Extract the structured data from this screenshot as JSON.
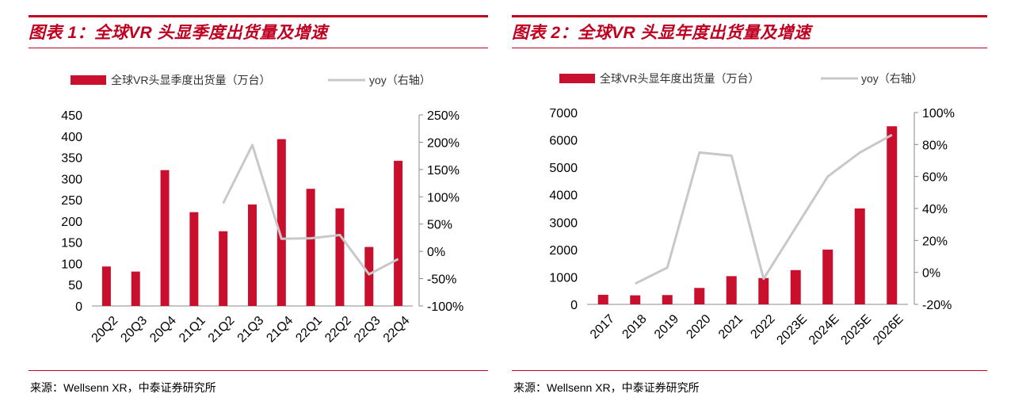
{
  "theme": {
    "accent": "#c00020",
    "bar_color": "#c8102e",
    "line_color": "#c8c8c8",
    "axis_color": "#888888"
  },
  "chart_data": [
    {
      "type": "bar+line",
      "title": "图表 1：全球VR 头显季度出货量及增速",
      "source": "来源：Wellsenn XR，中泰证券研究所",
      "categories": [
        "20Q2",
        "20Q3",
        "20Q4",
        "21Q1",
        "21Q2",
        "21Q3",
        "21Q4",
        "22Q1",
        "22Q2",
        "22Q3",
        "22Q4"
      ],
      "series": [
        {
          "name": "全球VR头显季度出货量（万台）",
          "type": "bar",
          "axis": "left",
          "values": [
            93,
            81,
            320,
            221,
            176,
            239,
            393,
            276,
            230,
            139,
            342
          ]
        },
        {
          "name": "yoy（右轴）",
          "type": "line",
          "axis": "right",
          "values": [
            null,
            null,
            null,
            null,
            0.88,
            1.95,
            0.23,
            0.24,
            0.3,
            -0.42,
            -0.14
          ]
        }
      ],
      "left_axis": {
        "ylim": [
          0,
          450
        ],
        "ticks": [
          0,
          50,
          100,
          150,
          200,
          250,
          300,
          350,
          400,
          450
        ],
        "tick_labels": [
          "0",
          "50",
          "100",
          "150",
          "200",
          "250",
          "300",
          "350",
          "400",
          "450"
        ]
      },
      "right_axis": {
        "ylim": [
          -1.0,
          2.5
        ],
        "ticks": [
          -1.0,
          -0.5,
          0,
          0.5,
          1.0,
          1.5,
          2.0,
          2.5
        ],
        "tick_labels": [
          "-100%",
          "-50%",
          "0%",
          "50%",
          "100%",
          "150%",
          "200%",
          "250%"
        ]
      },
      "legend_placement": "top-center"
    },
    {
      "type": "bar+line",
      "title": "图表 2：全球VR 头显年度出货量及增速",
      "source": "来源：Wellsenn XR，中泰证券研究所",
      "categories": [
        "2017",
        "2018",
        "2019",
        "2020",
        "2021",
        "2022",
        "2023E",
        "2024E",
        "2025E",
        "2026E"
      ],
      "series": [
        {
          "name": "全球VR头显年度出货量（万台）",
          "type": "bar",
          "axis": "left",
          "values": [
            350,
            330,
            340,
            600,
            1030,
            960,
            1250,
            2000,
            3500,
            6500
          ]
        },
        {
          "name": "yoy（右轴）",
          "type": "line",
          "axis": "right",
          "values": [
            null,
            -0.07,
            0.03,
            0.75,
            0.73,
            -0.04,
            0.28,
            0.6,
            0.75,
            0.86
          ]
        }
      ],
      "left_axis": {
        "ylim": [
          0,
          7000
        ],
        "ticks": [
          0,
          1000,
          2000,
          3000,
          4000,
          5000,
          6000,
          7000
        ],
        "tick_labels": [
          "0",
          "1000",
          "2000",
          "3000",
          "4000",
          "5000",
          "6000",
          "7000"
        ]
      },
      "right_axis": {
        "ylim": [
          -0.2,
          1.0
        ],
        "ticks": [
          -0.2,
          0,
          0.2,
          0.4,
          0.6,
          0.8,
          1.0
        ],
        "tick_labels": [
          "-20%",
          "0%",
          "20%",
          "40%",
          "60%",
          "80%",
          "100%"
        ]
      },
      "legend_placement": "top-center"
    }
  ]
}
